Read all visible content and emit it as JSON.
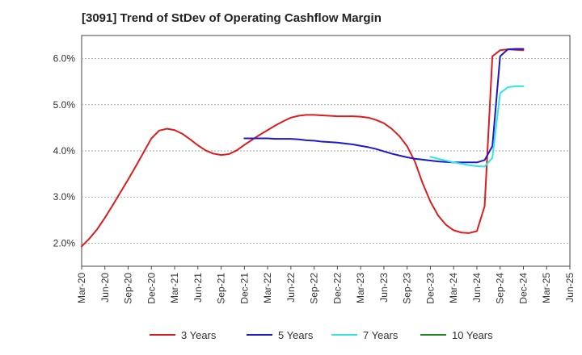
{
  "chart_data": {
    "type": "line",
    "title": "[3091]  Trend of StDev of Operating Cashflow Margin",
    "xlabel": "",
    "ylabel": "",
    "ylim": [
      1.5,
      6.5
    ],
    "yticks": [
      2.0,
      3.0,
      4.0,
      5.0,
      6.0
    ],
    "ytick_labels": [
      "2.0%",
      "3.0%",
      "4.0%",
      "5.0%",
      "6.0%"
    ],
    "x_range": [
      "Mar-20",
      "Jun-25"
    ],
    "xtick_labels": [
      "Mar-20",
      "Jun-20",
      "Sep-20",
      "Dec-20",
      "Mar-21",
      "Jun-21",
      "Sep-21",
      "Dec-21",
      "Mar-22",
      "Jun-22",
      "Sep-22",
      "Dec-22",
      "Mar-23",
      "Jun-23",
      "Sep-23",
      "Dec-23",
      "Mar-24",
      "Jun-24",
      "Sep-24",
      "Dec-24",
      "Mar-25",
      "Jun-25"
    ],
    "grid": "horizontal dashed",
    "legend_position": "bottom",
    "series": [
      {
        "name": "3 Years",
        "color": "#dd1c1c",
        "x": [
          "Mar-20",
          "Apr-20",
          "May-20",
          "Jun-20",
          "Jul-20",
          "Aug-20",
          "Sep-20",
          "Oct-20",
          "Nov-20",
          "Dec-20",
          "Jan-21",
          "Feb-21",
          "Mar-21",
          "Apr-21",
          "May-21",
          "Jun-21",
          "Jul-21",
          "Aug-21",
          "Sep-21",
          "Oct-21",
          "Nov-21",
          "Dec-21",
          "Jan-22",
          "Feb-22",
          "Mar-22",
          "Apr-22",
          "May-22",
          "Jun-22",
          "Jul-22",
          "Aug-22",
          "Sep-22",
          "Oct-22",
          "Nov-22",
          "Dec-22",
          "Jan-23",
          "Feb-23",
          "Mar-23",
          "Apr-23",
          "May-23",
          "Jun-23",
          "Jul-23",
          "Aug-23",
          "Sep-23",
          "Oct-23",
          "Nov-23",
          "Dec-23",
          "Jan-24",
          "Feb-24",
          "Mar-24",
          "Apr-24",
          "May-24",
          "Jun-24",
          "Jul-24",
          "Aug-24",
          "Sep-24",
          "Oct-24",
          "Nov-24",
          "Dec-24"
        ],
        "values": [
          1.93,
          2.1,
          2.3,
          2.55,
          2.82,
          3.1,
          3.38,
          3.67,
          3.97,
          4.27,
          4.44,
          4.48,
          4.45,
          4.37,
          4.25,
          4.12,
          4.01,
          3.94,
          3.91,
          3.93,
          4.01,
          4.13,
          4.24,
          4.35,
          4.45,
          4.55,
          4.64,
          4.72,
          4.76,
          4.78,
          4.78,
          4.77,
          4.76,
          4.75,
          4.75,
          4.75,
          4.74,
          4.72,
          4.67,
          4.6,
          4.48,
          4.32,
          4.1,
          3.77,
          3.3,
          2.9,
          2.6,
          2.4,
          2.28,
          2.23,
          2.22,
          2.26,
          2.8,
          6.05,
          6.18,
          6.2,
          6.19,
          6.18
        ]
      },
      {
        "name": "5 Years",
        "color": "#1a1acc",
        "x": [
          "Dec-21",
          "Jan-22",
          "Feb-22",
          "Mar-22",
          "Apr-22",
          "May-22",
          "Jun-22",
          "Jul-22",
          "Aug-22",
          "Sep-22",
          "Oct-22",
          "Nov-22",
          "Dec-22",
          "Jan-23",
          "Feb-23",
          "Mar-23",
          "Apr-23",
          "May-23",
          "Jun-23",
          "Jul-23",
          "Aug-23",
          "Sep-23",
          "Oct-23",
          "Nov-23",
          "Dec-23",
          "Jan-24",
          "Feb-24",
          "Mar-24",
          "Apr-24",
          "May-24",
          "Jun-24",
          "Jul-24",
          "Aug-24",
          "Sep-24",
          "Oct-24",
          "Nov-24",
          "Dec-24"
        ],
        "values": [
          4.27,
          4.27,
          4.27,
          4.27,
          4.26,
          4.26,
          4.26,
          4.25,
          4.23,
          4.22,
          4.2,
          4.19,
          4.18,
          4.16,
          4.14,
          4.11,
          4.08,
          4.04,
          3.99,
          3.94,
          3.9,
          3.86,
          3.83,
          3.81,
          3.79,
          3.77,
          3.76,
          3.75,
          3.75,
          3.75,
          3.75,
          3.8,
          4.1,
          6.05,
          6.2,
          6.21,
          6.21
        ]
      },
      {
        "name": "7 Years",
        "color": "#33e6e6",
        "x": [
          "Dec-23",
          "Jan-24",
          "Feb-24",
          "Mar-24",
          "Apr-24",
          "May-24",
          "Jun-24",
          "Jul-24",
          "Aug-24",
          "Sep-24",
          "Oct-24",
          "Nov-24",
          "Dec-24"
        ],
        "values": [
          3.87,
          3.83,
          3.79,
          3.75,
          3.72,
          3.69,
          3.67,
          3.66,
          3.85,
          5.25,
          5.38,
          5.4,
          5.4
        ]
      },
      {
        "name": "10 Years",
        "color": "#1e8a1e",
        "x": [],
        "values": []
      }
    ]
  }
}
